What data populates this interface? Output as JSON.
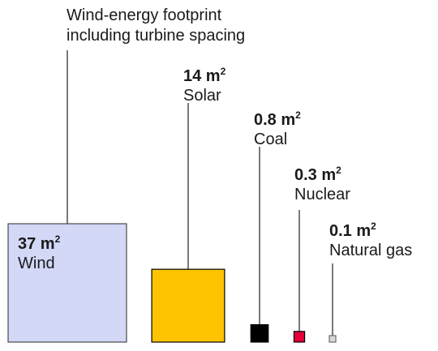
{
  "chart_data": {
    "type": "area-squares",
    "unit": "m",
    "unit_exp": "2",
    "annotation": [
      "Wind-energy footprint",
      "including turbine spacing"
    ],
    "series": [
      {
        "name": "Wind",
        "value": 37,
        "value_label": "37 m",
        "color": "#d3d8f7"
      },
      {
        "name": "Solar",
        "value": 14,
        "value_label": "14 m",
        "color": "#ffc400"
      },
      {
        "name": "Coal",
        "value": 0.8,
        "value_label": "0.8 m",
        "color": "#000000"
      },
      {
        "name": "Nuclear",
        "value": 0.3,
        "value_label": "0.3 m",
        "color": "#e3003a"
      },
      {
        "name": "Natural gas",
        "value": 0.1,
        "value_label": "0.1 m",
        "color": "#d9d9d9"
      }
    ]
  }
}
